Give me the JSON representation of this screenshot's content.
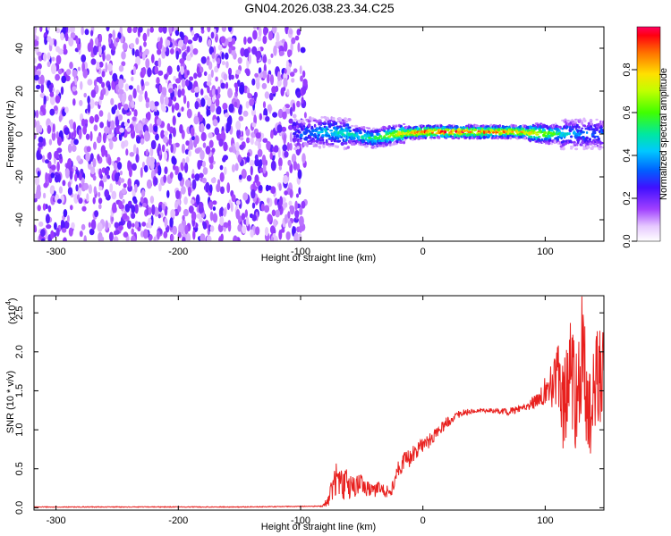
{
  "title": "GN04.2026.038.23.34.C25",
  "chart_data": [
    {
      "type": "heatmap",
      "name": "spectrogram",
      "xlabel": "Height of straight line (km)",
      "ylabel": "Frequency (Hz)",
      "xlim": [
        -318,
        148
      ],
      "ylim": [
        -50,
        50
      ],
      "xticks": [
        -300,
        -200,
        -100,
        0,
        100
      ],
      "xtick_labels": [
        "-300",
        "-200",
        "-100",
        "0",
        "100"
      ],
      "yticks": [
        -40,
        -20,
        0,
        20,
        40
      ],
      "ytick_labels": [
        "-40",
        "-20",
        "0",
        "20",
        "40"
      ],
      "noise_region_x": [
        -318,
        -100
      ],
      "signal_band": {
        "x": [
          -105,
          -80,
          -60,
          -40,
          -20,
          0,
          20,
          40,
          60,
          80,
          100,
          120,
          148
        ],
        "center_hz": [
          0,
          1,
          0,
          -2,
          0,
          1,
          1,
          1,
          1,
          1,
          0,
          0,
          0
        ],
        "amplitude": [
          0.3,
          0.45,
          0.5,
          0.55,
          0.75,
          0.95,
          0.98,
          0.95,
          0.9,
          0.85,
          0.7,
          0.4,
          0.35
        ]
      },
      "colorbar": {
        "label": "Normalized spectral amplitude",
        "range": [
          0,
          1
        ],
        "ticks": [
          0.0,
          0.2,
          0.4,
          0.6,
          0.8
        ],
        "tick_labels": [
          "0.0",
          "0.2",
          "0.4",
          "0.6",
          "0.8"
        ]
      }
    },
    {
      "type": "line",
      "name": "snr",
      "xlabel": "Height of straight line (km)",
      "ylabel": "SNR (10 * v/v)",
      "scale_label": "(x10",
      "scale_exponent": "4",
      "scale_close": ")",
      "xlim": [
        -318,
        148
      ],
      "ylim": [
        -0.03,
        2.72
      ],
      "xticks": [
        -300,
        -200,
        -100,
        0,
        100
      ],
      "xtick_labels": [
        "-300",
        "-200",
        "-100",
        "0",
        "100"
      ],
      "yticks": [
        0.0,
        0.5,
        1.0,
        1.5,
        2.0,
        2.5
      ],
      "ytick_labels": [
        "0.0",
        "0.5",
        "1.0",
        "1.5",
        "2.0",
        "2.5"
      ],
      "series": [
        {
          "name": "SNR",
          "color": "#e8201e",
          "x": [
            -318,
            -250,
            -150,
            -82,
            -78,
            -75,
            -72,
            -70,
            -68,
            -65,
            -62,
            -60,
            -55,
            -50,
            -45,
            -40,
            -35,
            -30,
            -25,
            -22,
            -20,
            -15,
            -10,
            -5,
            0,
            5,
            10,
            15,
            20,
            25,
            30,
            35,
            40,
            45,
            50,
            55,
            60,
            65,
            70,
            75,
            80,
            85,
            90,
            95,
            100,
            105,
            110,
            115,
            120,
            125,
            130,
            135,
            140,
            145,
            148
          ],
          "y": [
            0.01,
            0.01,
            0.01,
            0.02,
            0.08,
            0.2,
            0.3,
            0.45,
            0.3,
            0.25,
            0.4,
            0.25,
            0.28,
            0.3,
            0.25,
            0.22,
            0.25,
            0.2,
            0.25,
            0.45,
            0.5,
            0.6,
            0.65,
            0.72,
            0.8,
            0.85,
            0.95,
            1.02,
            1.1,
            1.15,
            1.2,
            1.22,
            1.24,
            1.25,
            1.25,
            1.25,
            1.24,
            1.24,
            1.23,
            1.25,
            1.27,
            1.3,
            1.35,
            1.4,
            1.5,
            1.6,
            1.7,
            1.2,
            1.8,
            1.4,
            2.0,
            1.3,
            1.6,
            1.7,
            1.7
          ],
          "noise_amplitude": [
            0.0,
            0.0,
            0.0,
            0.0,
            0.08,
            0.15,
            0.2,
            0.2,
            0.2,
            0.2,
            0.15,
            0.15,
            0.15,
            0.12,
            0.12,
            0.1,
            0.1,
            0.1,
            0.1,
            0.1,
            0.1,
            0.12,
            0.12,
            0.1,
            0.1,
            0.1,
            0.08,
            0.08,
            0.07,
            0.05,
            0.05,
            0.04,
            0.03,
            0.03,
            0.03,
            0.03,
            0.03,
            0.04,
            0.04,
            0.05,
            0.05,
            0.06,
            0.08,
            0.1,
            0.2,
            0.3,
            0.5,
            0.6,
            0.7,
            0.7,
            0.8,
            0.8,
            0.7,
            0.6,
            0.6
          ]
        }
      ]
    }
  ]
}
